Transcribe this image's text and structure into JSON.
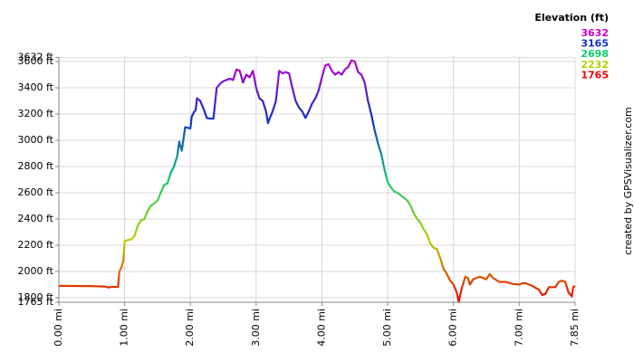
{
  "chart_data": {
    "type": "line",
    "credit": "created by GPSVisualizer.com",
    "legend": {
      "title": "Elevation (ft)",
      "items": [
        {
          "value": 3632,
          "color": "#cc00cc"
        },
        {
          "value": 3165,
          "color": "#1030cc"
        },
        {
          "value": 2698,
          "color": "#10cc70"
        },
        {
          "value": 2232,
          "color": "#b8d000"
        },
        {
          "value": 1765,
          "color": "#ee0000"
        }
      ]
    },
    "xlim": [
      0,
      7.85
    ],
    "ylim": [
      1765,
      3632
    ],
    "xticks": [
      {
        "value": 0,
        "label": "0.00 mi"
      },
      {
        "value": 1,
        "label": "1.00 mi"
      },
      {
        "value": 2,
        "label": "2.00 mi"
      },
      {
        "value": 3,
        "label": "3.00 mi"
      },
      {
        "value": 4,
        "label": "4.00 mi"
      },
      {
        "value": 5,
        "label": "5.00 mi"
      },
      {
        "value": 6,
        "label": "6.00 mi"
      },
      {
        "value": 7,
        "label": "7.00 mi"
      },
      {
        "value": 7.85,
        "label": "7.85 mi"
      }
    ],
    "yticks": [
      {
        "value": 1765,
        "label": "1765 ft"
      },
      {
        "value": 1800,
        "label": "1800 ft"
      },
      {
        "value": 2000,
        "label": "2000 ft"
      },
      {
        "value": 2200,
        "label": "2200 ft"
      },
      {
        "value": 2400,
        "label": "2400 ft"
      },
      {
        "value": 2600,
        "label": "2600 ft"
      },
      {
        "value": 2800,
        "label": "2800 ft"
      },
      {
        "value": 3000,
        "label": "3000 ft"
      },
      {
        "value": 3200,
        "label": "3200 ft"
      },
      {
        "value": 3400,
        "label": "3400 ft"
      },
      {
        "value": 3600,
        "label": "3600 ft"
      },
      {
        "value": 3632,
        "label": "3632 ft"
      }
    ],
    "grid": true,
    "x": [
      0,
      0.5,
      0.7,
      0.75,
      0.8,
      0.9,
      0.92,
      0.95,
      0.98,
      1.0,
      1.05,
      1.1,
      1.15,
      1.2,
      1.25,
      1.3,
      1.35,
      1.4,
      1.45,
      1.5,
      1.55,
      1.6,
      1.65,
      1.7,
      1.75,
      1.8,
      1.83,
      1.87,
      1.92,
      2.0,
      2.02,
      2.06,
      2.08,
      2.1,
      2.15,
      2.2,
      2.25,
      2.3,
      2.35,
      2.4,
      2.45,
      2.5,
      2.55,
      2.6,
      2.65,
      2.7,
      2.75,
      2.8,
      2.85,
      2.9,
      2.95,
      3.0,
      3.05,
      3.1,
      3.15,
      3.18,
      3.2,
      3.25,
      3.3,
      3.35,
      3.4,
      3.45,
      3.5,
      3.55,
      3.6,
      3.65,
      3.7,
      3.75,
      3.8,
      3.85,
      3.9,
      3.95,
      4.0,
      4.05,
      4.1,
      4.15,
      4.2,
      4.25,
      4.3,
      4.35,
      4.4,
      4.45,
      4.5,
      4.55,
      4.6,
      4.65,
      4.7,
      4.75,
      4.8,
      4.85,
      4.9,
      4.95,
      5.0,
      5.05,
      5.1,
      5.15,
      5.2,
      5.25,
      5.3,
      5.35,
      5.4,
      5.45,
      5.5,
      5.55,
      5.6,
      5.65,
      5.7,
      5.75,
      5.8,
      5.85,
      5.9,
      5.95,
      6.0,
      6.05,
      6.08,
      6.12,
      6.18,
      6.22,
      6.25,
      6.3,
      6.4,
      6.45,
      6.5,
      6.55,
      6.6,
      6.7,
      6.8,
      6.9,
      7.0,
      7.05,
      7.1,
      7.2,
      7.3,
      7.35,
      7.4,
      7.45,
      7.55,
      7.6,
      7.65,
      7.7,
      7.75,
      7.8,
      7.82,
      7.85
    ],
    "series": [
      {
        "values": [
          1890,
          1888,
          1885,
          1878,
          1882,
          1882,
          2000,
          2030,
          2080,
          2230,
          2240,
          2245,
          2270,
          2350,
          2390,
          2400,
          2460,
          2500,
          2520,
          2540,
          2600,
          2660,
          2670,
          2750,
          2800,
          2880,
          2990,
          2920,
          3100,
          3090,
          3180,
          3220,
          3230,
          3320,
          3300,
          3240,
          3170,
          3165,
          3165,
          3400,
          3430,
          3450,
          3460,
          3470,
          3460,
          3540,
          3530,
          3440,
          3500,
          3480,
          3530,
          3400,
          3320,
          3300,
          3220,
          3130,
          3160,
          3220,
          3300,
          3530,
          3510,
          3520,
          3510,
          3400,
          3300,
          3250,
          3220,
          3170,
          3220,
          3280,
          3320,
          3380,
          3480,
          3570,
          3580,
          3530,
          3500,
          3520,
          3500,
          3540,
          3560,
          3610,
          3600,
          3520,
          3500,
          3440,
          3300,
          3200,
          3080,
          2980,
          2900,
          2780,
          2680,
          2640,
          2610,
          2600,
          2580,
          2560,
          2540,
          2500,
          2440,
          2400,
          2370,
          2320,
          2280,
          2210,
          2180,
          2170,
          2100,
          2020,
          1980,
          1930,
          1900,
          1840,
          1770,
          1860,
          1960,
          1950,
          1900,
          1940,
          1960,
          1950,
          1940,
          1980,
          1950,
          1920,
          1920,
          1905,
          1900,
          1910,
          1910,
          1890,
          1860,
          1820,
          1830,
          1880,
          1880,
          1920,
          1930,
          1920,
          1840,
          1810,
          1880,
          1890
        ]
      }
    ]
  }
}
